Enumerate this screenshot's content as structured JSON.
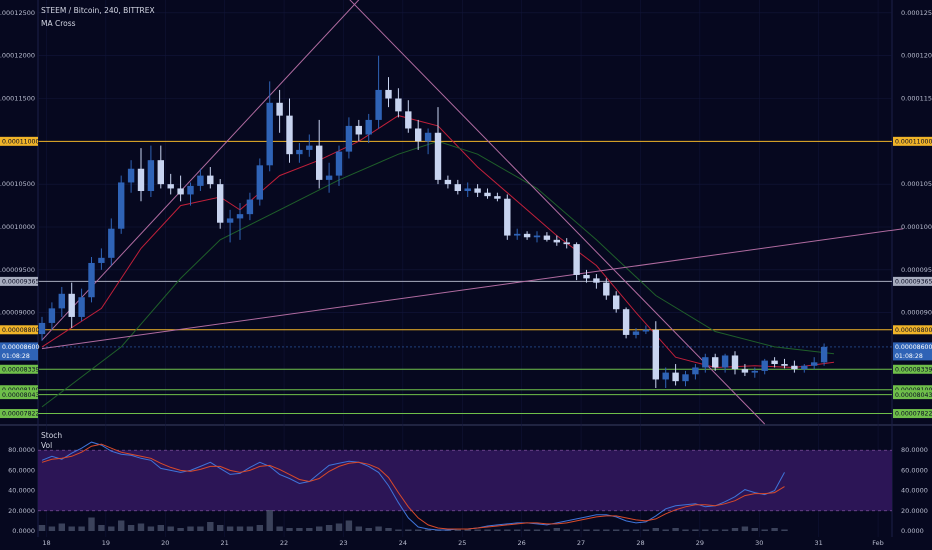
{
  "header": {
    "symbol_line": "STEEM / Bitcoin, 240, BITTREX",
    "indicator": "MA Cross"
  },
  "colors": {
    "background": "#06081f",
    "grid": "#12163a",
    "candle_up": "#2f63b6",
    "candle_down": "#c8d4f0",
    "ma_fast": "#c0203a",
    "ma_slow": "#1f5f2a",
    "stoch_k": "#3f74d9",
    "stoch_d": "#d84a2a",
    "stoch_band": "#2c1556",
    "volume": "#4d5670",
    "level_orange": "#f0b429",
    "level_green": "#6fbf4a",
    "level_gray": "#a8adbf",
    "trend_line": "#b06ba0",
    "price_tag": "#2f63b6"
  },
  "chart_data": [
    {
      "type": "candlestick",
      "title": "STEEM / Bitcoin, 240, BITTREX",
      "ylim": [
        7.7e-05,
        0.0001265
      ],
      "y_ticks": [
        "0.00012500",
        "0.00012000",
        "0.00011500",
        "0.00010500",
        "0.00010000",
        "0.00009500",
        "0.00009000"
      ],
      "x_ticks": [
        "18",
        "19",
        "20",
        "21",
        "22",
        "23",
        "24",
        "25",
        "26",
        "27",
        "28",
        "29",
        "30",
        "31",
        "Feb"
      ],
      "x_tick_positions": [
        0.45,
        6.45,
        12.45,
        18.45,
        24.45,
        30.45,
        36.45,
        42.45,
        48.45,
        54.45,
        60.45,
        66.45,
        72.45,
        78.45,
        84.45
      ],
      "candles": [
        {
          "o": 8.75e-05,
          "h": 8.95e-05,
          "l": 8.67e-05,
          "c": 8.88e-05
        },
        {
          "o": 8.88e-05,
          "h": 9.12e-05,
          "l": 8.8e-05,
          "c": 9.05e-05
        },
        {
          "o": 9.05e-05,
          "h": 9.3e-05,
          "l": 8.95e-05,
          "c": 9.22e-05
        },
        {
          "o": 9.22e-05,
          "h": 9.35e-05,
          "l": 8.82e-05,
          "c": 8.95e-05
        },
        {
          "o": 8.95e-05,
          "h": 9.28e-05,
          "l": 8.9e-05,
          "c": 9.18e-05
        },
        {
          "o": 9.18e-05,
          "h": 9.65e-05,
          "l": 9.12e-05,
          "c": 9.58e-05
        },
        {
          "o": 9.58e-05,
          "h": 9.75e-05,
          "l": 9.5e-05,
          "c": 9.64e-05
        },
        {
          "o": 9.64e-05,
          "h": 0.000101,
          "l": 9.55e-05,
          "c": 9.98e-05
        },
        {
          "o": 9.98e-05,
          "h": 0.000106,
          "l": 9.92e-05,
          "c": 0.0001052
        },
        {
          "o": 0.0001052,
          "h": 0.0001078,
          "l": 0.000104,
          "c": 0.0001068
        },
        {
          "o": 0.0001068,
          "h": 0.0001092,
          "l": 0.000103,
          "c": 0.0001042
        },
        {
          "o": 0.0001042,
          "h": 0.0001095,
          "l": 0.0001035,
          "c": 0.0001078
        },
        {
          "o": 0.0001078,
          "h": 0.0001095,
          "l": 0.0001045,
          "c": 0.000105
        },
        {
          "o": 0.000105,
          "h": 0.0001062,
          "l": 0.0001038,
          "c": 0.0001045
        },
        {
          "o": 0.0001045,
          "h": 0.000106,
          "l": 0.000103,
          "c": 0.0001038
        },
        {
          "o": 0.0001038,
          "h": 0.0001052,
          "l": 0.0001025,
          "c": 0.0001048
        },
        {
          "o": 0.0001048,
          "h": 0.0001068,
          "l": 0.0001042,
          "c": 0.000106
        },
        {
          "o": 0.000106,
          "h": 0.000107,
          "l": 0.0001045,
          "c": 0.000105
        },
        {
          "o": 0.000105,
          "h": 0.0001056,
          "l": 9.98e-05,
          "c": 0.0001005
        },
        {
          "o": 0.0001005,
          "h": 0.000102,
          "l": 9.82e-05,
          "c": 0.000101
        },
        {
          "o": 0.000101,
          "h": 0.0001028,
          "l": 9.85e-05,
          "c": 0.0001015
        },
        {
          "o": 0.0001015,
          "h": 0.000104,
          "l": 0.0001008,
          "c": 0.0001032
        },
        {
          "o": 0.0001032,
          "h": 0.000108,
          "l": 0.0001025,
          "c": 0.0001072
        },
        {
          "o": 0.0001072,
          "h": 0.000117,
          "l": 0.0001065,
          "c": 0.0001145
        },
        {
          "o": 0.0001145,
          "h": 0.000116,
          "l": 0.000111,
          "c": 0.000113
        },
        {
          "o": 0.000113,
          "h": 0.000115,
          "l": 0.0001075,
          "c": 0.0001085
        },
        {
          "o": 0.0001085,
          "h": 0.0001098,
          "l": 0.0001075,
          "c": 0.000109
        },
        {
          "o": 0.000109,
          "h": 0.0001108,
          "l": 0.0001082,
          "c": 0.0001095
        },
        {
          "o": 0.0001095,
          "h": 0.0001125,
          "l": 0.0001045,
          "c": 0.0001055
        },
        {
          "o": 0.0001055,
          "h": 0.0001075,
          "l": 0.000104,
          "c": 0.000106
        },
        {
          "o": 0.000106,
          "h": 0.0001095,
          "l": 0.0001048,
          "c": 0.0001088
        },
        {
          "o": 0.0001088,
          "h": 0.0001128,
          "l": 0.000108,
          "c": 0.0001118
        },
        {
          "o": 0.0001118,
          "h": 0.0001125,
          "l": 0.00011,
          "c": 0.0001108
        },
        {
          "o": 0.0001108,
          "h": 0.0001132,
          "l": 0.0001098,
          "c": 0.0001125
        },
        {
          "o": 0.0001125,
          "h": 0.00012,
          "l": 0.0001115,
          "c": 0.000116
        },
        {
          "o": 0.000116,
          "h": 0.0001175,
          "l": 0.000114,
          "c": 0.000115
        },
        {
          "o": 0.000115,
          "h": 0.0001162,
          "l": 0.0001128,
          "c": 0.0001135
        },
        {
          "o": 0.0001135,
          "h": 0.0001148,
          "l": 0.000111,
          "c": 0.0001115
        },
        {
          "o": 0.0001115,
          "h": 0.0001125,
          "l": 0.000109,
          "c": 0.00011
        },
        {
          "o": 0.00011,
          "h": 0.0001115,
          "l": 0.0001085,
          "c": 0.000111
        },
        {
          "o": 0.000111,
          "h": 0.000114,
          "l": 0.000105,
          "c": 0.0001055
        },
        {
          "o": 0.0001055,
          "h": 0.000106,
          "l": 0.0001045,
          "c": 0.000105
        },
        {
          "o": 0.000105,
          "h": 0.0001055,
          "l": 0.0001038,
          "c": 0.0001042
        },
        {
          "o": 0.0001042,
          "h": 0.0001052,
          "l": 0.0001035,
          "c": 0.0001045
        },
        {
          "o": 0.0001045,
          "h": 0.000105,
          "l": 0.0001035,
          "c": 0.000104
        },
        {
          "o": 0.000104,
          "h": 0.0001045,
          "l": 0.0001033,
          "c": 0.0001036
        },
        {
          "o": 0.0001036,
          "h": 0.000104,
          "l": 0.000103,
          "c": 0.0001033
        },
        {
          "o": 0.0001033,
          "h": 0.0001038,
          "l": 9.85e-05,
          "c": 9.9e-05
        },
        {
          "o": 9.9e-05,
          "h": 9.98e-05,
          "l": 9.85e-05,
          "c": 9.92e-05
        },
        {
          "o": 9.92e-05,
          "h": 9.95e-05,
          "l": 9.85e-05,
          "c": 9.88e-05
        },
        {
          "o": 9.88e-05,
          "h": 9.95e-05,
          "l": 9.82e-05,
          "c": 9.9e-05
        },
        {
          "o": 9.9e-05,
          "h": 9.94e-05,
          "l": 9.83e-05,
          "c": 9.85e-05
        },
        {
          "o": 9.85e-05,
          "h": 9.9e-05,
          "l": 9.78e-05,
          "c": 9.82e-05
        },
        {
          "o": 9.82e-05,
          "h": 9.87e-05,
          "l": 9.75e-05,
          "c": 9.8e-05
        },
        {
          "o": 9.8e-05,
          "h": 9.82e-05,
          "l": 9.38e-05,
          "c": 9.44e-05
        },
        {
          "o": 9.44e-05,
          "h": 9.5e-05,
          "l": 9.35e-05,
          "c": 9.4e-05
        },
        {
          "o": 9.4e-05,
          "h": 9.45e-05,
          "l": 9.28e-05,
          "c": 9.35e-05
        },
        {
          "o": 9.35e-05,
          "h": 9.4e-05,
          "l": 9.15e-05,
          "c": 9.2e-05
        },
        {
          "o": 9.2e-05,
          "h": 9.25e-05,
          "l": 9e-05,
          "c": 9.04e-05
        },
        {
          "o": 9.04e-05,
          "h": 9.06e-05,
          "l": 8.7e-05,
          "c": 8.74e-05
        },
        {
          "o": 8.74e-05,
          "h": 8.82e-05,
          "l": 8.7e-05,
          "c": 8.78e-05
        },
        {
          "o": 8.78e-05,
          "h": 8.85e-05,
          "l": 8.75e-05,
          "c": 8.8e-05
        },
        {
          "o": 8.8e-05,
          "h": 8.9e-05,
          "l": 8.12e-05,
          "c": 8.22e-05
        },
        {
          "o": 8.22e-05,
          "h": 8.36e-05,
          "l": 8.12e-05,
          "c": 8.3e-05
        },
        {
          "o": 8.3e-05,
          "h": 8.4e-05,
          "l": 8.15e-05,
          "c": 8.2e-05
        },
        {
          "o": 8.2e-05,
          "h": 8.32e-05,
          "l": 8.14e-05,
          "c": 8.28e-05
        },
        {
          "o": 8.28e-05,
          "h": 8.4e-05,
          "l": 8.22e-05,
          "c": 8.36e-05
        },
        {
          "o": 8.36e-05,
          "h": 8.52e-05,
          "l": 8.3e-05,
          "c": 8.48e-05
        },
        {
          "o": 8.48e-05,
          "h": 8.52e-05,
          "l": 8.32e-05,
          "c": 8.36e-05
        },
        {
          "o": 8.36e-05,
          "h": 8.52e-05,
          "l": 8.3e-05,
          "c": 8.5e-05
        },
        {
          "o": 8.5e-05,
          "h": 8.55e-05,
          "l": 8.28e-05,
          "c": 8.34e-05
        },
        {
          "o": 8.34e-05,
          "h": 8.4e-05,
          "l": 8.26e-05,
          "c": 8.3e-05
        },
        {
          "o": 8.3e-05,
          "h": 8.36e-05,
          "l": 8.24e-05,
          "c": 8.32e-05
        },
        {
          "o": 8.32e-05,
          "h": 8.46e-05,
          "l": 8.28e-05,
          "c": 8.44e-05
        },
        {
          "o": 8.44e-05,
          "h": 8.48e-05,
          "l": 8.36e-05,
          "c": 8.4e-05
        },
        {
          "o": 8.4e-05,
          "h": 8.46e-05,
          "l": 8.35e-05,
          "c": 8.38e-05
        },
        {
          "o": 8.38e-05,
          "h": 8.44e-05,
          "l": 8.3e-05,
          "c": 8.34e-05
        },
        {
          "o": 8.34e-05,
          "h": 8.4e-05,
          "l": 8.3e-05,
          "c": 8.38e-05
        },
        {
          "o": 8.38e-05,
          "h": 8.48e-05,
          "l": 8.34e-05,
          "c": 8.42e-05
        },
        {
          "o": 8.42e-05,
          "h": 8.64e-05,
          "l": 8.38e-05,
          "c": 8.6e-05
        }
      ],
      "moving_averages": [
        {
          "points": [
            [
              0,
              8.6e-05
            ],
            [
              6,
              9.05e-05
            ],
            [
              10,
              9.75e-05
            ],
            [
              14,
              0.0001025
            ],
            [
              18,
              0.0001035
            ],
            [
              20,
              0.000102
            ],
            [
              24,
              0.000106
            ],
            [
              28,
              0.0001078
            ],
            [
              32,
              0.00011
            ],
            [
              36,
              0.000113
            ],
            [
              40,
              0.0001118
            ],
            [
              44,
              0.000107
            ],
            [
              48,
              0.000103
            ],
            [
              52,
              9.9e-05
            ],
            [
              56,
              9.55e-05
            ],
            [
              60,
              9e-05
            ],
            [
              64,
              8.48e-05
            ],
            [
              68,
              8.36e-05
            ],
            [
              72,
              8.38e-05
            ],
            [
              76,
              8.36e-05
            ],
            [
              80,
              8.42e-05
            ]
          ]
        },
        {
          "points": [
            [
              0,
              7.9e-05
            ],
            [
              8,
              8.6e-05
            ],
            [
              14,
              9.4e-05
            ],
            [
              18,
              9.85e-05
            ],
            [
              24,
              0.000102
            ],
            [
              30,
              0.0001055
            ],
            [
              36,
              0.0001085
            ],
            [
              40,
              0.00011
            ],
            [
              44,
              0.0001085
            ],
            [
              50,
              0.0001045
            ],
            [
              56,
              9.85e-05
            ],
            [
              62,
              9.2e-05
            ],
            [
              68,
              8.78e-05
            ],
            [
              74,
              8.6e-05
            ],
            [
              80,
              8.52e-05
            ]
          ]
        }
      ],
      "trend_lines": [
        {
          "from": [
            0,
            8.68e-05
          ],
          "to": [
            34,
            0.000129
          ]
        },
        {
          "from": [
            29,
            0.000129
          ],
          "to": [
            73,
            7.7e-05
          ]
        },
        {
          "from": [
            0,
            8.58e-05
          ],
          "to": [
            87,
            9.98e-05
          ]
        }
      ],
      "horizontal_levels": [
        {
          "label": "0.00011000",
          "value": 0.00011,
          "kind": "orange"
        },
        {
          "label": "0.00009365",
          "value": 9.365e-05,
          "kind": "gray"
        },
        {
          "label": "0.00008800",
          "value": 8.8e-05,
          "kind": "orange"
        },
        {
          "label": "0.00008339",
          "value": 8.339e-05,
          "kind": "green"
        },
        {
          "label": "0.00008100",
          "value": 8.1e-05,
          "kind": "green"
        },
        {
          "label": "0.00008043",
          "value": 8.043e-05,
          "kind": "green"
        },
        {
          "label": "0.00007822",
          "value": 7.822e-05,
          "kind": "green"
        }
      ],
      "current_price": {
        "value": 8.6e-05,
        "label": "0.00008600",
        "countdown": "01:08:28"
      }
    },
    {
      "type": "line",
      "title": "Stoch",
      "legend": [
        "Stoch",
        "Vol"
      ],
      "ylim": [
        0,
        100
      ],
      "y_ticks": [
        "80.0000",
        "60.0000",
        "40.0000",
        "20.0000",
        "0.0000"
      ],
      "band": [
        20,
        80
      ],
      "series": [
        {
          "values": [
            70,
            74,
            71,
            77,
            82,
            88,
            85,
            79,
            76,
            75,
            72,
            70,
            62,
            60,
            58,
            60,
            64,
            68,
            62,
            56,
            57,
            63,
            68,
            64,
            56,
            52,
            47,
            49,
            57,
            65,
            67,
            69,
            68,
            64,
            58,
            45,
            28,
            13,
            4,
            2,
            1,
            1,
            2,
            2,
            3,
            5,
            6,
            7,
            8,
            8,
            7,
            6,
            8,
            10,
            12,
            14,
            16,
            16,
            14,
            10,
            8,
            9,
            15,
            22,
            25,
            26,
            27,
            24,
            25,
            29,
            34,
            41,
            38,
            36,
            40,
            58
          ]
        },
        {
          "values": [
            68,
            71,
            72,
            74,
            78,
            84,
            86,
            82,
            78,
            76,
            74,
            72,
            67,
            63,
            60,
            59,
            61,
            64,
            64,
            60,
            58,
            60,
            64,
            65,
            61,
            56,
            51,
            49,
            52,
            59,
            64,
            67,
            68,
            66,
            62,
            53,
            38,
            24,
            13,
            6,
            3,
            2,
            2,
            2,
            3,
            4,
            5,
            6,
            7,
            8,
            8,
            7,
            7,
            8,
            10,
            12,
            14,
            15,
            15,
            13,
            11,
            10,
            12,
            17,
            21,
            24,
            26,
            26,
            25,
            27,
            30,
            35,
            37,
            37,
            38,
            44
          ]
        }
      ],
      "volume": [
        4,
        3,
        5,
        3,
        3,
        9,
        4,
        3,
        7,
        4,
        5,
        3,
        4,
        3,
        2,
        3,
        3,
        6,
        4,
        3,
        3,
        3,
        4,
        14,
        3,
        2,
        2,
        2,
        3,
        4,
        5,
        7,
        3,
        2,
        3,
        2,
        1,
        1,
        1,
        1,
        1,
        1,
        1,
        1,
        1,
        1,
        1,
        1,
        1,
        1,
        1,
        1,
        2,
        1,
        1,
        1,
        1,
        1,
        1,
        1,
        1,
        1,
        2,
        1,
        2,
        1,
        1,
        1,
        1,
        1,
        2,
        3,
        2,
        1,
        2,
        1
      ]
    }
  ]
}
